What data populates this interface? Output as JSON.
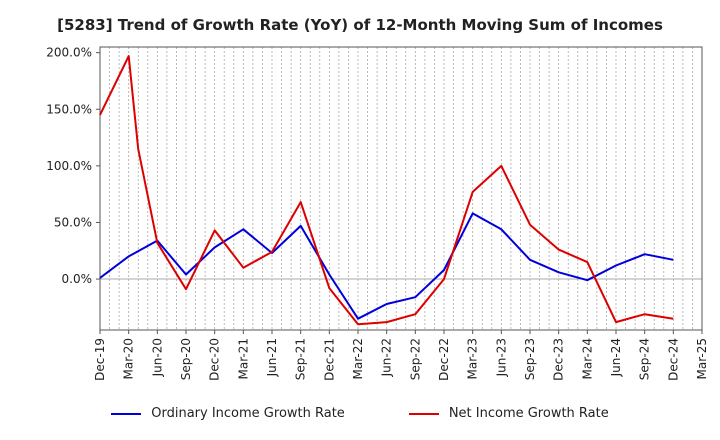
{
  "chart_data": {
    "type": "line",
    "title": "[5283]  Trend of Growth Rate (YoY) of 12-Month Moving Sum of Incomes",
    "xlabel": "",
    "ylabel": "",
    "ylim": [
      -45,
      205
    ],
    "yticks": [
      0,
      50,
      100,
      150,
      200
    ],
    "ytick_labels": [
      "0.0%",
      "50.0%",
      "100.0%",
      "150.0%",
      "200.0%"
    ],
    "categories": [
      "Dec-19",
      "Jan-20",
      "Feb-20",
      "Mar-20",
      "Apr-20",
      "May-20",
      "Jun-20",
      "Jul-20",
      "Aug-20",
      "Sep-20",
      "Oct-20",
      "Nov-20",
      "Dec-20",
      "Jan-21",
      "Feb-21",
      "Mar-21",
      "Apr-21",
      "May-21",
      "Jun-21",
      "Jul-21",
      "Aug-21",
      "Sep-21",
      "Oct-21",
      "Nov-21",
      "Dec-21",
      "Jan-22",
      "Feb-22",
      "Mar-22",
      "Apr-22",
      "May-22",
      "Jun-22",
      "Jul-22",
      "Aug-22",
      "Sep-22",
      "Oct-22",
      "Nov-22",
      "Dec-22",
      "Jan-23",
      "Feb-23",
      "Mar-23",
      "Apr-23",
      "May-23",
      "Jun-23",
      "Jul-23",
      "Aug-23",
      "Sep-23",
      "Oct-23",
      "Nov-23",
      "Dec-23",
      "Jan-24",
      "Feb-24",
      "Mar-24",
      "Apr-24",
      "May-24",
      "Jun-24",
      "Jul-24",
      "Aug-24",
      "Sep-24",
      "Oct-24",
      "Nov-24",
      "Dec-24",
      "Jan-25",
      "Feb-25",
      "Mar-25"
    ],
    "xtick_labels": [
      "Dec-19",
      "Mar-20",
      "Jun-20",
      "Sep-20",
      "Dec-20",
      "Mar-21",
      "Jun-21",
      "Sep-21",
      "Dec-21",
      "Mar-22",
      "Jun-22",
      "Sep-22",
      "Dec-22",
      "Mar-23",
      "Jun-23",
      "Sep-23",
      "Dec-23",
      "Mar-24",
      "Jun-24",
      "Sep-24",
      "Dec-24",
      "Mar-25"
    ],
    "xtick_every": 3,
    "series": [
      {
        "name": "Ordinary Income Growth Rate",
        "color": "#0000dd",
        "values": [
          1,
          null,
          null,
          20,
          null,
          null,
          34,
          null,
          null,
          4,
          null,
          null,
          28,
          null,
          null,
          44,
          null,
          null,
          23,
          null,
          null,
          47,
          null,
          null,
          4,
          null,
          null,
          -35,
          null,
          null,
          -22,
          null,
          null,
          -16,
          null,
          null,
          8,
          null,
          null,
          58,
          null,
          null,
          44,
          null,
          null,
          17,
          null,
          null,
          6,
          null,
          null,
          -1,
          null,
          null,
          12,
          null,
          null,
          22,
          null,
          null,
          17,
          null,
          null,
          null
        ]
      },
      {
        "name": "Net Income Growth Rate",
        "color": "#dd0000",
        "values": [
          145,
          null,
          null,
          197,
          115,
          null,
          32,
          null,
          null,
          -9,
          null,
          null,
          43,
          null,
          null,
          10,
          null,
          null,
          24,
          null,
          null,
          68,
          null,
          null,
          -8,
          null,
          null,
          -40,
          null,
          null,
          -38,
          null,
          null,
          -31,
          null,
          null,
          0,
          null,
          null,
          77,
          null,
          null,
          100,
          null,
          null,
          48,
          null,
          null,
          26,
          null,
          null,
          15,
          null,
          null,
          -38,
          null,
          null,
          -31,
          null,
          null,
          -35,
          null,
          null,
          null
        ]
      }
    ],
    "grid": "vertical-dashed",
    "legend_position": "bottom"
  }
}
